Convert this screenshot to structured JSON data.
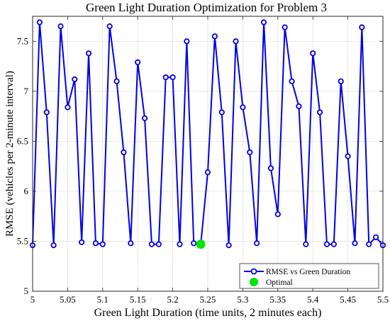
{
  "chart_data": {
    "type": "line",
    "title": "Green Light Duration Optimization for Problem 3",
    "xlabel": "Green Light Duration (time units, 2 minutes each)",
    "ylabel": "RMSE (vehicles per 2-minute interval)",
    "xlim": [
      5,
      5.5
    ],
    "ylim": [
      5,
      7.75
    ],
    "grid": true,
    "legend_position": "bottom-right",
    "xticks": [
      5,
      5.05,
      5.1,
      5.15,
      5.2,
      5.25,
      5.3,
      5.35,
      5.4,
      5.45,
      5.5
    ],
    "xtick_labels": [
      "5",
      "5.05",
      "5.1",
      "5.15",
      "5.2",
      "5.25",
      "5.3",
      "5.35",
      "5.4",
      "5.45",
      "5.5"
    ],
    "yticks": [
      5,
      5.5,
      6,
      6.5,
      7,
      7.5
    ],
    "ytick_labels": [
      "5",
      "5.5",
      "6",
      "6.5",
      "7",
      "7.5"
    ],
    "series": [
      {
        "name": "RMSE vs Green Duration",
        "color": "#0000e6",
        "marker": "circle",
        "x": [
          5.0,
          5.01,
          5.02,
          5.03,
          5.04,
          5.05,
          5.06,
          5.07,
          5.08,
          5.09,
          5.1,
          5.11,
          5.12,
          5.13,
          5.14,
          5.15,
          5.16,
          5.17,
          5.18,
          5.19,
          5.2,
          5.21,
          5.22,
          5.23,
          5.24,
          5.25,
          5.26,
          5.27,
          5.28,
          5.29,
          5.3,
          5.31,
          5.32,
          5.33,
          5.34,
          5.35,
          5.36,
          5.37,
          5.38,
          5.39,
          5.4,
          5.41,
          5.42,
          5.43,
          5.44,
          5.45,
          5.46,
          5.47,
          5.48,
          5.49,
          5.5
        ],
        "y": [
          5.46,
          7.69,
          6.79,
          5.46,
          7.65,
          6.84,
          7.12,
          5.49,
          7.38,
          5.48,
          5.47,
          7.65,
          7.1,
          6.39,
          5.48,
          7.29,
          6.73,
          5.47,
          5.47,
          7.14,
          7.14,
          5.47,
          7.5,
          5.48,
          5.47,
          6.19,
          7.55,
          6.79,
          5.46,
          7.5,
          6.84,
          6.39,
          5.48,
          7.69,
          6.23,
          5.77,
          7.64,
          7.1,
          6.85,
          5.47,
          7.38,
          6.79,
          5.47,
          5.47,
          7.1,
          6.35,
          5.48,
          7.64,
          5.47,
          5.54,
          5.46
        ]
      },
      {
        "name": "Optimal",
        "color": "#00e600",
        "marker": "filled-circle",
        "x": [
          5.24
        ],
        "y": [
          5.47
        ]
      }
    ]
  }
}
